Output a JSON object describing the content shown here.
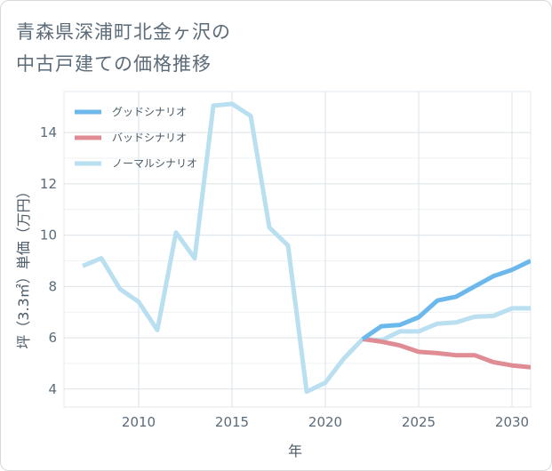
{
  "title_line1": "青森県深浦町北金ヶ沢の",
  "title_line2": "中古戸建ての価格推移",
  "chart_data": {
    "type": "line",
    "xlabel": "年",
    "ylabel": "坪（3.3㎡）単価（万円）",
    "xlim": [
      2006.0,
      2031.0
    ],
    "ylim": [
      3.3,
      15.6
    ],
    "x_ticks": [
      2010,
      2015,
      2020,
      2025,
      2030
    ],
    "y_ticks": [
      4,
      6,
      8,
      10,
      12,
      14
    ],
    "grid": true,
    "legend_position": "top-left",
    "series": [
      {
        "name": "グッドシナリオ",
        "color": "#6cb8ec",
        "x": [
          2022,
          2023,
          2024,
          2025,
          2026,
          2027,
          2028,
          2029,
          2030,
          2031
        ],
        "y": [
          5.95,
          6.45,
          6.5,
          6.8,
          7.45,
          7.6,
          8.0,
          8.4,
          8.65,
          9.0
        ]
      },
      {
        "name": "バッドシナリオ",
        "color": "#e08c94",
        "x": [
          2022,
          2023,
          2024,
          2025,
          2026,
          2027,
          2028,
          2029,
          2030,
          2031
        ],
        "y": [
          5.95,
          5.85,
          5.7,
          5.45,
          5.4,
          5.32,
          5.32,
          5.05,
          4.92,
          4.85
        ]
      },
      {
        "name": "ノーマルシナリオ",
        "color": "#b9dff0",
        "x": [
          2007,
          2008,
          2009,
          2010,
          2011,
          2012,
          2013,
          2014,
          2015,
          2016,
          2017,
          2018,
          2019,
          2020,
          2021,
          2022,
          2023,
          2024,
          2025,
          2026,
          2027,
          2028,
          2029,
          2030,
          2031
        ],
        "y": [
          8.8,
          9.1,
          7.9,
          7.4,
          6.3,
          10.1,
          9.1,
          15.05,
          15.12,
          14.65,
          10.3,
          9.6,
          3.9,
          4.25,
          5.2,
          5.95,
          5.9,
          6.25,
          6.25,
          6.55,
          6.6,
          6.82,
          6.85,
          7.15,
          7.15
        ]
      }
    ]
  }
}
